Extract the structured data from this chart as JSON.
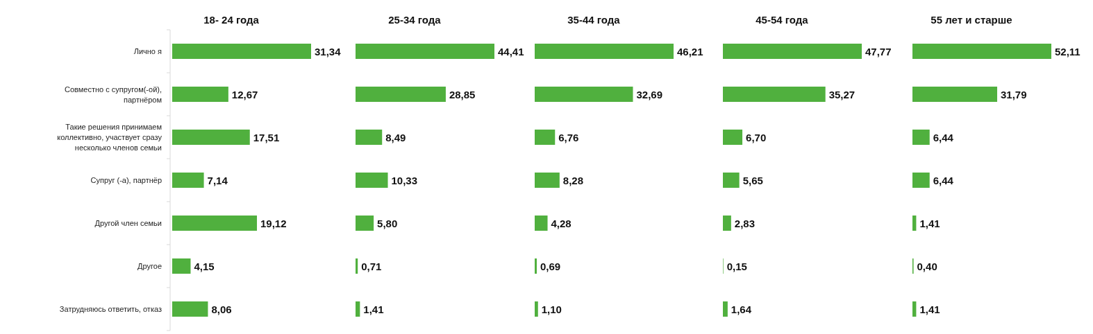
{
  "chart_data": [
    {
      "type": "bar",
      "orientation": "horizontal",
      "title": "18- 24 года",
      "categories": [
        "Лично я",
        "Совместно с супругом(-ой), партнёром",
        "Такие решения принимаем коллективно, участвует сразу несколько членов семьи",
        "Супруг (-а), партнёр",
        "Другой член семьи",
        "Другое",
        "Затрудняюсь ответить, отказ"
      ],
      "values": [
        31.34,
        12.67,
        17.51,
        7.14,
        19.12,
        4.15,
        8.06
      ],
      "value_labels": [
        "31,34",
        "12,67",
        "17,51",
        "7,14",
        "19,12",
        "4,15",
        "8,06"
      ],
      "color": "#50b03e",
      "tick_labels": "y"
    },
    {
      "type": "bar",
      "orientation": "horizontal",
      "title": "25-34 года",
      "categories": [
        null,
        null,
        null,
        null,
        null,
        null,
        null
      ],
      "values": [
        44.41,
        28.85,
        8.49,
        10.33,
        5.8,
        0.71,
        1.41
      ],
      "value_labels": [
        "44,41",
        "28,85",
        "8,49",
        "10,33",
        "5,80",
        "0,71",
        "1,41"
      ],
      "color": "#50b03e",
      "tick_labels": false
    },
    {
      "type": "bar",
      "orientation": "horizontal",
      "title": "35-44 года",
      "categories": [
        null,
        null,
        null,
        null,
        null,
        null,
        null
      ],
      "values": [
        46.21,
        32.69,
        6.76,
        8.28,
        4.28,
        0.69,
        1.1
      ],
      "value_labels": [
        "46,21",
        "32,69",
        "6,76",
        "8,28",
        "4,28",
        "0,69",
        "1,10"
      ],
      "color": "#50b03e",
      "tick_labels": false
    },
    {
      "type": "bar",
      "orientation": "horizontal",
      "title": "45-54 года",
      "categories": [
        null,
        null,
        null,
        null,
        null,
        null,
        null
      ],
      "values": [
        47.77,
        35.27,
        6.7,
        5.65,
        2.83,
        0.15,
        1.64
      ],
      "value_labels": [
        "47,77",
        "35,27",
        "6,70",
        "5,65",
        "2,83",
        "0,15",
        "1,64"
      ],
      "color": "#50b03e",
      "tick_labels": false
    },
    {
      "type": "bar",
      "orientation": "horizontal",
      "title": "55 лет и старше",
      "categories": [
        null,
        null,
        null,
        null,
        null,
        null,
        null
      ],
      "values": [
        52.11,
        31.79,
        6.44,
        6.44,
        1.41,
        0.4,
        1.41
      ],
      "value_labels": [
        "52,11",
        "31,79",
        "6,44",
        "6,44",
        "1,41",
        "0,40",
        "1,41"
      ],
      "color": "#50b03e",
      "tick_labels": false
    }
  ]
}
